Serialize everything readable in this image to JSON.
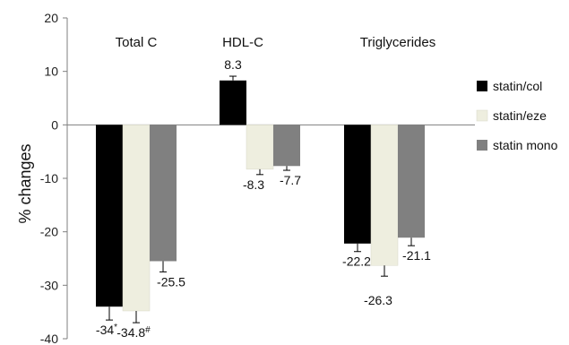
{
  "chart_data": {
    "type": "bar",
    "title": "",
    "xlabel": "",
    "ylabel": "% changes",
    "ylim": [
      -40,
      20
    ],
    "yticks": [
      20,
      10,
      0,
      -10,
      -20,
      -30,
      -40
    ],
    "categories": [
      "Total C",
      "HDL-C",
      "Triglycerides"
    ],
    "legend_position": "right",
    "grid": false,
    "series": [
      {
        "name": "statin/col",
        "color": "#000000",
        "values": [
          -34,
          8.3,
          -22.2
        ],
        "errors": [
          2.5,
          0.8,
          1.5
        ],
        "labels": [
          "-34*",
          "8.3",
          "-22.2"
        ]
      },
      {
        "name": "statin/eze",
        "color": "#eeeedf",
        "values": [
          -34.8,
          -8.3,
          -26.3
        ],
        "errors": [
          2.2,
          1.0,
          2.0
        ],
        "labels": [
          "-34.8#",
          "-8.3",
          "-26.3"
        ]
      },
      {
        "name": "statin mono",
        "color": "#808080",
        "values": [
          -25.5,
          -7.7,
          -21.1
        ],
        "errors": [
          2.0,
          0.8,
          1.5
        ],
        "labels": [
          "-25.5",
          "-7.7",
          "-21.1"
        ]
      }
    ]
  }
}
